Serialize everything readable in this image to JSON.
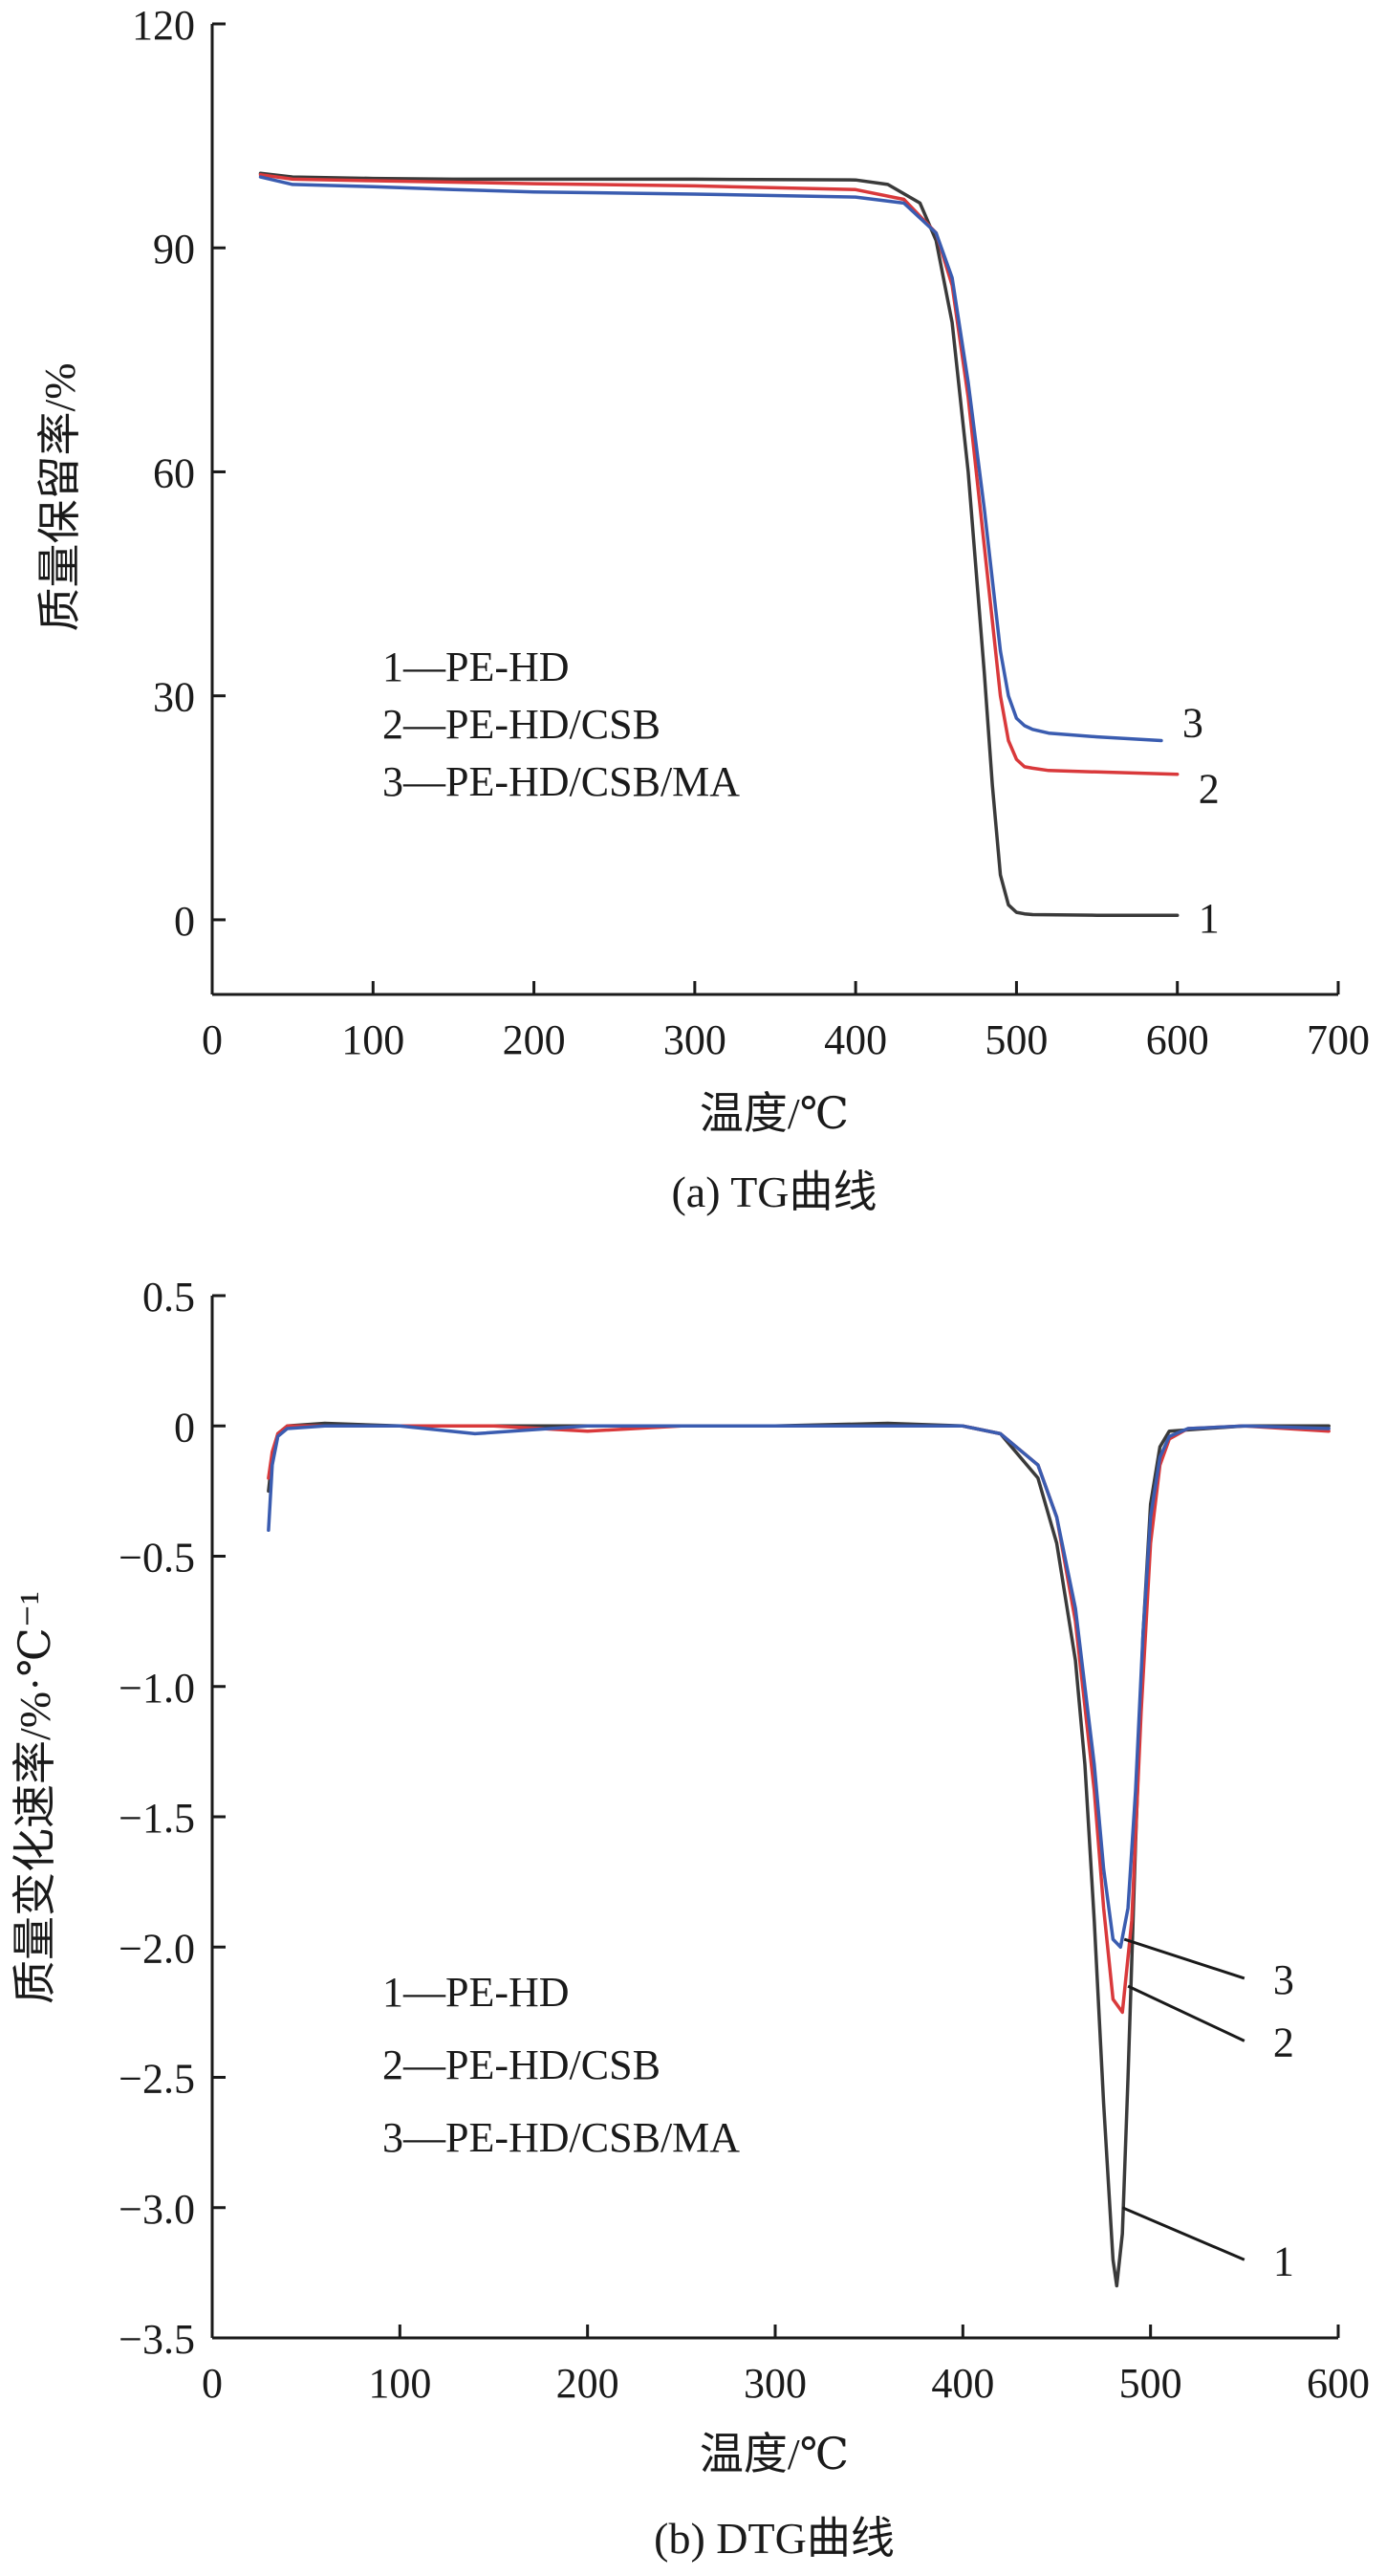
{
  "chart_data": [
    {
      "type": "line",
      "caption": "(a) TG曲线",
      "xlabel": "温度/℃",
      "ylabel": "质量保留率/%",
      "xlim": [
        0,
        700
      ],
      "ylim": [
        -10,
        120
      ],
      "xticks": [
        0,
        100,
        200,
        300,
        400,
        500,
        600,
        700
      ],
      "yticks": [
        0,
        30,
        60,
        90,
        120
      ],
      "xtick_labels": [
        "0",
        "100",
        "200",
        "300",
        "400",
        "500",
        "600",
        "700"
      ],
      "ytick_labels": [
        "0",
        "30",
        "60",
        "90",
        "120"
      ],
      "legend": [
        "1—PE-HD",
        "2—PE-HD/CSB",
        "3—PE-HD/CSB/MA"
      ],
      "legend_position": "center-left",
      "grid": false,
      "series": [
        {
          "name": "1—PE-HD",
          "label": "1",
          "color": "#3a3a3a",
          "x": [
            30,
            50,
            100,
            150,
            200,
            300,
            400,
            420,
            440,
            450,
            460,
            470,
            480,
            485,
            490,
            495,
            500,
            505,
            510,
            550,
            600
          ],
          "y": [
            100,
            99.5,
            99.3,
            99.2,
            99.2,
            99.2,
            99.1,
            98.5,
            96,
            91,
            80,
            60,
            33,
            18,
            6,
            2,
            1,
            0.8,
            0.7,
            0.6,
            0.6
          ]
        },
        {
          "name": "2—PE-HD/CSB",
          "label": "2",
          "color": "#d9393b",
          "x": [
            30,
            50,
            100,
            150,
            200,
            300,
            400,
            430,
            450,
            460,
            470,
            480,
            490,
            495,
            500,
            505,
            510,
            520,
            550,
            600
          ],
          "y": [
            99.8,
            99.2,
            99,
            98.8,
            98.6,
            98.3,
            97.8,
            96.5,
            92,
            85,
            70,
            50,
            30,
            24,
            21.5,
            20.5,
            20.3,
            20,
            19.8,
            19.5
          ]
        },
        {
          "name": "3—PE-HD/CSB/MA",
          "label": "3",
          "color": "#3a5cb0",
          "x": [
            30,
            50,
            100,
            150,
            200,
            300,
            400,
            430,
            450,
            460,
            470,
            480,
            490,
            495,
            500,
            505,
            510,
            520,
            550,
            590
          ],
          "y": [
            99.5,
            98.5,
            98.2,
            97.8,
            97.5,
            97.2,
            96.8,
            96,
            92,
            86,
            72,
            55,
            36,
            30,
            27,
            26,
            25.5,
            25,
            24.5,
            24
          ]
        }
      ]
    },
    {
      "type": "line",
      "caption": "(b) DTG曲线",
      "xlabel": "温度/℃",
      "ylabel": "质量变化速率/%·℃⁻¹",
      "xlim": [
        0,
        600
      ],
      "ylim": [
        -3.5,
        0.5
      ],
      "xticks": [
        0,
        100,
        200,
        300,
        400,
        500,
        600
      ],
      "yticks": [
        0.5,
        0,
        -0.5,
        -1.0,
        -1.5,
        -2.0,
        -2.5,
        -3.0,
        -3.5
      ],
      "xtick_labels": [
        "0",
        "100",
        "200",
        "300",
        "400",
        "500",
        "600"
      ],
      "ytick_labels": [
        "0.5",
        "0",
        "−0.5",
        "−1.0",
        "−1.5",
        "−2.0",
        "−2.5",
        "−3.0",
        "−3.5"
      ],
      "legend": [
        "1—PE-HD",
        "2—PE-HD/CSB",
        "3—PE-HD/CSB/MA"
      ],
      "legend_position": "lower-left",
      "grid": false,
      "series": [
        {
          "name": "1—PE-HD",
          "label": "1",
          "color": "#3a3a3a",
          "x": [
            30,
            32,
            35,
            40,
            60,
            100,
            150,
            200,
            250,
            300,
            360,
            400,
            420,
            440,
            450,
            460,
            465,
            470,
            475,
            480,
            482,
            485,
            488,
            492,
            496,
            500,
            505,
            510,
            550,
            595
          ],
          "y": [
            -0.25,
            -0.12,
            -0.03,
            0,
            0.01,
            0,
            0,
            0,
            0,
            0,
            0.01,
            0,
            -0.03,
            -0.2,
            -0.45,
            -0.9,
            -1.3,
            -1.9,
            -2.6,
            -3.2,
            -3.3,
            -3.1,
            -2.5,
            -1.6,
            -0.8,
            -0.3,
            -0.08,
            -0.02,
            0,
            0
          ]
        },
        {
          "name": "2—PE-HD/CSB",
          "label": "2",
          "color": "#d9393b",
          "x": [
            30,
            32,
            35,
            40,
            60,
            100,
            150,
            200,
            250,
            300,
            400,
            420,
            440,
            450,
            460,
            470,
            475,
            480,
            485,
            490,
            495,
            500,
            505,
            510,
            520,
            550,
            595
          ],
          "y": [
            -0.2,
            -0.1,
            -0.03,
            0,
            0,
            0,
            0,
            -0.02,
            0,
            0,
            0,
            -0.03,
            -0.15,
            -0.35,
            -0.75,
            -1.4,
            -1.85,
            -2.2,
            -2.25,
            -1.9,
            -1.1,
            -0.45,
            -0.15,
            -0.05,
            -0.01,
            0,
            -0.02
          ]
        },
        {
          "name": "3—PE-HD/CSB/MA",
          "label": "3",
          "color": "#3a5cb0",
          "x": [
            30,
            32,
            35,
            40,
            60,
            100,
            140,
            200,
            250,
            300,
            400,
            420,
            440,
            450,
            460,
            470,
            475,
            480,
            484,
            488,
            492,
            496,
            500,
            505,
            510,
            520,
            550,
            595
          ],
          "y": [
            -0.4,
            -0.15,
            -0.04,
            -0.01,
            0,
            0,
            -0.03,
            0,
            0,
            0,
            0,
            -0.03,
            -0.15,
            -0.35,
            -0.7,
            -1.3,
            -1.7,
            -1.97,
            -2.0,
            -1.85,
            -1.4,
            -0.8,
            -0.35,
            -0.12,
            -0.04,
            -0.01,
            0,
            -0.01
          ]
        }
      ],
      "callout_labels": [
        "1",
        "2",
        "3"
      ]
    }
  ]
}
